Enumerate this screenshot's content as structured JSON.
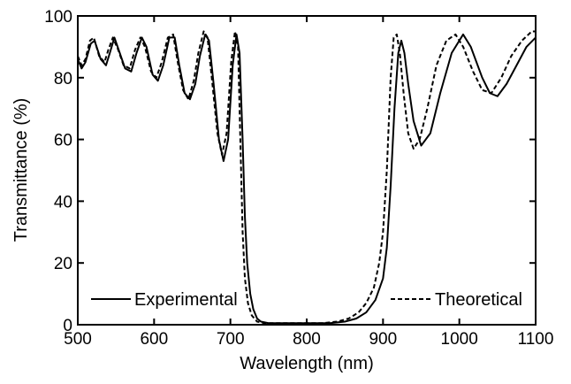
{
  "chart_data": {
    "type": "line",
    "title": "",
    "xlabel": "Wavelength (nm)",
    "ylabel": "Transmittance (%)",
    "xlim": [
      500,
      1100
    ],
    "ylim": [
      0,
      100
    ],
    "xticks": [
      "500",
      "600",
      "700",
      "800",
      "900",
      "1000",
      "1100"
    ],
    "yticks": [
      "0",
      "20",
      "40",
      "60",
      "80",
      "100"
    ],
    "grid": false,
    "legend_placement": "bottom",
    "series": [
      {
        "name": "Experimental",
        "style": "solid",
        "color": "#000000",
        "x": [
          500,
          505,
          510,
          517,
          522,
          530,
          537,
          542,
          548,
          555,
          562,
          570,
          577,
          584,
          590,
          598,
          605,
          612,
          620,
          627,
          633,
          640,
          647,
          654,
          660,
          667,
          672,
          678,
          685,
          691,
          697,
          703,
          708,
          712,
          716,
          719,
          722,
          726,
          730,
          735,
          740,
          750,
          760,
          775,
          790,
          810,
          830,
          850,
          865,
          878,
          890,
          900,
          905,
          910,
          915,
          920,
          924,
          928,
          933,
          940,
          950,
          962,
          975,
          990,
          1005,
          1015,
          1030,
          1040,
          1050,
          1062,
          1075,
          1088,
          1100
        ],
        "y": [
          86,
          83,
          85,
          91,
          92,
          86,
          84,
          88,
          93,
          88,
          83,
          82,
          88,
          93,
          90,
          81,
          79,
          84,
          93,
          93,
          84,
          75,
          73,
          78,
          87,
          94,
          92,
          78,
          60,
          53,
          60,
          84,
          94,
          88,
          60,
          35,
          20,
          10,
          5,
          2,
          1,
          0.5,
          0.5,
          0.5,
          0.5,
          0.5,
          0.5,
          1,
          2,
          4,
          8,
          15,
          25,
          45,
          70,
          88,
          92,
          88,
          78,
          66,
          58,
          62,
          75,
          88,
          94,
          90,
          80,
          75,
          74,
          78,
          84,
          90,
          93
        ]
      },
      {
        "name": "Theoretical",
        "style": "dashed",
        "color": "#000000",
        "x": [
          500,
          505,
          510,
          516,
          521,
          528,
          535,
          540,
          546,
          553,
          560,
          568,
          575,
          582,
          588,
          596,
          603,
          610,
          618,
          625,
          631,
          638,
          645,
          652,
          658,
          665,
          670,
          676,
          683,
          689,
          695,
          701,
          706,
          710,
          713,
          716,
          719,
          723,
          728,
          735,
          745,
          760,
          780,
          800,
          820,
          840,
          855,
          868,
          878,
          888,
          895,
          900,
          905,
          910,
          914,
          918,
          922,
          927,
          933,
          940,
          948,
          958,
          970,
          983,
          995,
          1005,
          1018,
          1030,
          1042,
          1055,
          1068,
          1082,
          1095,
          1100
        ],
        "y": [
          87,
          84,
          86,
          92,
          93,
          87,
          85,
          89,
          93,
          89,
          84,
          83,
          89,
          93,
          90,
          82,
          80,
          85,
          93,
          94,
          85,
          76,
          73,
          79,
          88,
          95,
          93,
          79,
          62,
          55,
          62,
          85,
          95,
          90,
          60,
          30,
          15,
          7,
          3,
          1,
          0.5,
          0.5,
          0.5,
          0.5,
          0.5,
          1,
          2,
          4,
          7,
          12,
          20,
          30,
          50,
          80,
          93,
          94,
          88,
          75,
          62,
          57,
          60,
          70,
          84,
          92,
          94,
          90,
          82,
          76,
          75,
          80,
          87,
          92,
          95,
          95
        ]
      }
    ],
    "legend": [
      {
        "name": "Experimental",
        "style": "solid"
      },
      {
        "name": "Theoretical",
        "style": "dashed"
      }
    ]
  }
}
